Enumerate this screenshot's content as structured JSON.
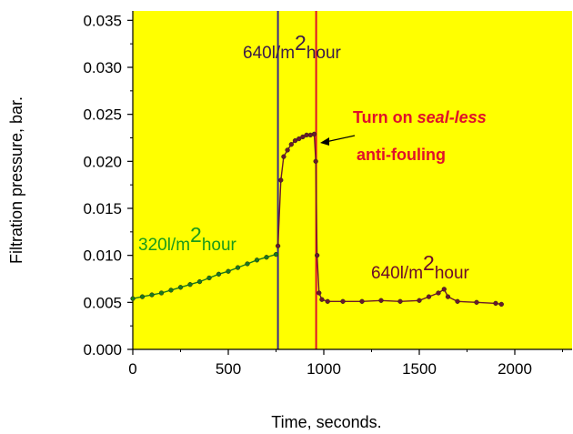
{
  "colors": {
    "plot_bg": "#ffff00",
    "series_early": "#1a7a1a",
    "series_late": "#6a1a2a",
    "marker_line_1": "#3a2a8a",
    "marker_line_2": "#e0102a",
    "annot_green": "#1a9a1a",
    "annot_purple": "#3a1a4a",
    "annot_red": "#e0102a",
    "annot_dark_red": "#6a0a2a"
  },
  "chart_data": {
    "type": "scatter",
    "xlabel": "Time, seconds.",
    "ylabel": "Filtration pressure, bar.",
    "xlim": [
      0,
      2300
    ],
    "ylim": [
      0,
      0.036
    ],
    "x_ticks": [
      "0",
      "500",
      "1000",
      "1500",
      "2000"
    ],
    "x_tick_values": [
      0,
      500,
      1000,
      1500,
      2000
    ],
    "y_ticks": [
      "0.000",
      "0.005",
      "0.010",
      "0.015",
      "0.020",
      "0.025",
      "0.030",
      "0.035"
    ],
    "y_tick_values": [
      0.0,
      0.005,
      0.01,
      0.015,
      0.02,
      0.025,
      0.03,
      0.035
    ],
    "vertical_lines": [
      {
        "x": 760,
        "color_key": "marker_line_1"
      },
      {
        "x": 960,
        "color_key": "marker_line_2"
      }
    ],
    "series": [
      {
        "color_key": "series_early",
        "x": [
          0,
          50,
          100,
          150,
          200,
          250,
          300,
          350,
          400,
          450,
          500,
          550,
          600,
          650,
          700,
          750
        ],
        "y": [
          0.0054,
          0.0056,
          0.0058,
          0.006,
          0.0063,
          0.0066,
          0.0069,
          0.0072,
          0.0076,
          0.008,
          0.0083,
          0.0087,
          0.0091,
          0.0095,
          0.0098,
          0.0101
        ]
      },
      {
        "color_key": "series_late",
        "x": [
          760,
          775,
          790,
          810,
          830,
          850,
          870,
          890,
          910,
          930,
          950,
          958,
          965,
          975,
          990,
          1020,
          1100,
          1200,
          1300,
          1400,
          1500,
          1550,
          1600,
          1630,
          1650,
          1700,
          1800,
          1900,
          1930
        ],
        "y": [
          0.011,
          0.018,
          0.0205,
          0.0212,
          0.0218,
          0.0222,
          0.0224,
          0.0226,
          0.0228,
          0.0228,
          0.0229,
          0.02,
          0.01,
          0.006,
          0.0053,
          0.0051,
          0.0051,
          0.0051,
          0.0052,
          0.0051,
          0.0052,
          0.0056,
          0.006,
          0.0064,
          0.0056,
          0.0051,
          0.005,
          0.0049,
          0.0048
        ]
      }
    ],
    "annotations": {
      "label_a_base": "320l/m",
      "label_a_sup": "2",
      "label_a_tail": "hour",
      "label_b_base": "640l/m",
      "label_b_sup": "2",
      "label_b_tail": "hour",
      "label_c_base": "640l/m",
      "label_c_sup": "2",
      "label_c_tail": "hour",
      "turn_on_prefix": "Turn on ",
      "turn_on_emph": "seal-less",
      "turn_on_line2": "anti-fouling"
    }
  }
}
